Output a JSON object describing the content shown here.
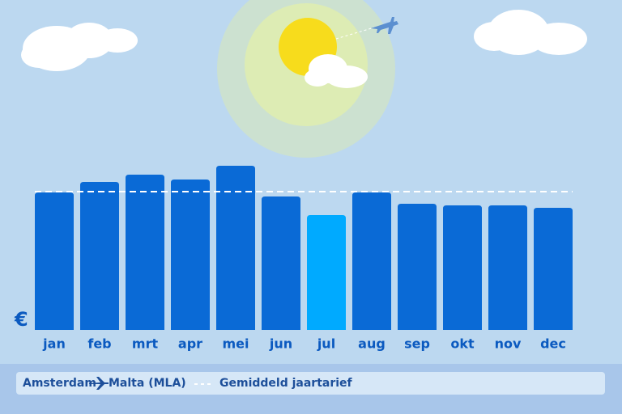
{
  "chart_data": {
    "type": "bar",
    "y_label": "€",
    "categories": [
      "jan",
      "feb",
      "mrt",
      "apr",
      "mei",
      "jun",
      "jul",
      "aug",
      "sep",
      "okt",
      "nov",
      "dec"
    ],
    "values": [
      170,
      183,
      192,
      186,
      203,
      165,
      142,
      170,
      156,
      154,
      154,
      151
    ],
    "colors": [
      "#0a6ad6",
      "#0a6ad6",
      "#0a6ad6",
      "#0a6ad6",
      "#0a6ad6",
      "#0a6ad6",
      "#00aaff",
      "#0a6ad6",
      "#0a6ad6",
      "#0a6ad6",
      "#0a6ad6",
      "#0a6ad6"
    ],
    "ylim": [
      0,
      408
    ],
    "reference_line": {
      "name": "Gemiddeld jaartarief",
      "value": 171
    },
    "route": {
      "origin": "Amsterdam",
      "destination": "Malta (MLA)"
    }
  }
}
